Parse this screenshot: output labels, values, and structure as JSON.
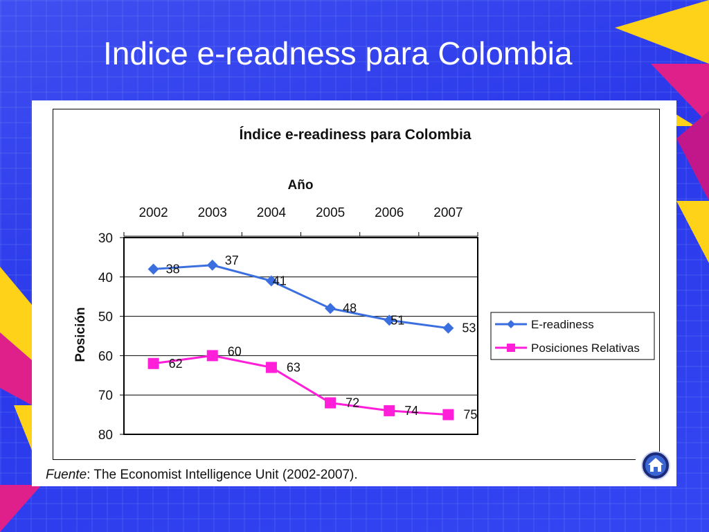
{
  "slide": {
    "title": "Indice e-readness para Colombia",
    "source_label": "Fuente",
    "source_text": ": The Economist Intelligence Unit (2002-2007).",
    "home_icon": "home-icon"
  },
  "colors": {
    "background": "#2f3ff0",
    "series_ereadiness": "#3b6fe0",
    "series_posiciones": "#ff1fd8",
    "accent_yellow": "#ffd21a",
    "accent_pink": "#e0208a"
  },
  "chart_data": {
    "type": "line",
    "title": "Índice e-readiness para Colombia",
    "xlabel": "Año",
    "ylabel": "Posición",
    "x": [
      "2002",
      "2003",
      "2004",
      "2005",
      "2006",
      "2007"
    ],
    "x_axis_position": "top",
    "ylim": [
      30,
      80
    ],
    "y_inverted": true,
    "yticks": [
      30,
      40,
      50,
      60,
      70,
      80
    ],
    "grid": true,
    "legend_position": "right",
    "series": [
      {
        "name": "E-readiness",
        "marker": "diamond",
        "values": [
          38,
          37,
          41,
          48,
          51,
          53
        ]
      },
      {
        "name": "Posiciones Relativas",
        "marker": "square",
        "values": [
          62,
          60,
          63,
          72,
          74,
          75
        ]
      }
    ]
  }
}
